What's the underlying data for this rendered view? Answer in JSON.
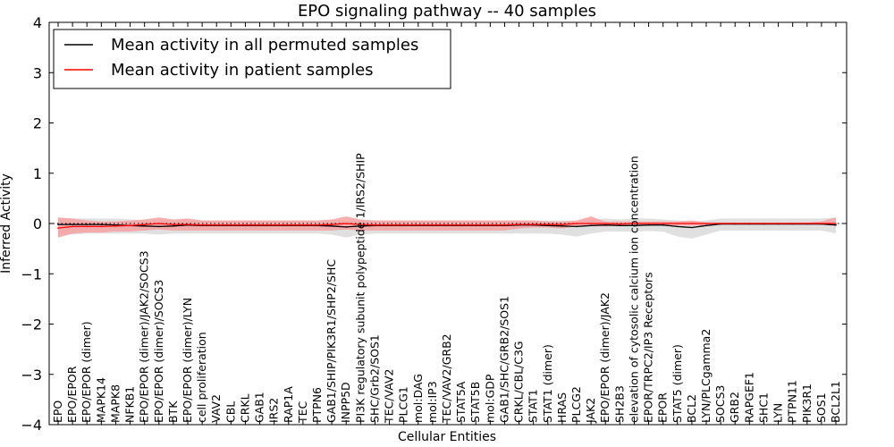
{
  "chart_data": {
    "type": "line",
    "title": "EPO signaling pathway -- 40 samples",
    "xlabel": "Cellular Entities",
    "ylabel": "Inferred Activity",
    "ylim": [
      -4,
      4
    ],
    "yticks": [
      -4,
      -3,
      -2,
      -1,
      0,
      1,
      2,
      3,
      4
    ],
    "legend_position": "top-left",
    "categories": [
      "EPO",
      "EPO/EPOR",
      "EPO/EPOR (dimer)",
      "MAPK14",
      "MAPK8",
      "NFKB1",
      "EPO/EPOR (dimer)/JAK2/SOCS3",
      "EPO/EPOR (dimer)/SOCS3",
      "BTK",
      "EPO/EPOR (dimer)/LYN",
      "cell proliferation",
      "VAV2",
      "CBL",
      "CRKL",
      "GAB1",
      "IRS2",
      "RAP1A",
      "TEC",
      "PTPN6",
      "GAB1/SHIP/PIK3R1/SHP2/SHC",
      "INPP5D",
      "PI3K regulatory subunit polypeptide 1/IRS2/SHIP",
      "SHC/Grb2/SOS1",
      "TEC/VAV2",
      "PLCG1",
      "mol:DAG",
      "mol:IP3",
      "TEC/VAV2/GRB2",
      "STAT5A",
      "STAT5B",
      "mol:GDP",
      "GAB1/SHC/GRB2/SOS1",
      "CRKL/CBL/C3G",
      "STAT1",
      "STAT1 (dimer)",
      "HRAS",
      "PLCG2",
      "JAK2",
      "EPO/EPOR (dimer)/JAK2",
      "SH2B3",
      "elevation of cytosolic calcium ion concentration",
      "EPOR/TRPC2/IP3 Receptors",
      "EPOR",
      "STAT5 (dimer)",
      "BCL2",
      "LYN/PLCgamma2",
      "SOCS3",
      "GRB2",
      "RAPGEF1",
      "SHC1",
      "LYN",
      "PTPN11",
      "PIK3R1",
      "SOS1",
      "BCL2L1"
    ],
    "series": [
      {
        "name": "Mean activity in all permuted samples",
        "color": "#000000",
        "values": [
          -0.02,
          -0.02,
          -0.02,
          -0.02,
          -0.03,
          -0.04,
          -0.05,
          -0.06,
          -0.05,
          -0.03,
          -0.04,
          -0.04,
          -0.04,
          -0.04,
          -0.04,
          -0.04,
          -0.04,
          -0.04,
          -0.04,
          -0.05,
          -0.07,
          -0.05,
          -0.04,
          -0.04,
          -0.04,
          -0.04,
          -0.04,
          -0.04,
          -0.04,
          -0.04,
          -0.04,
          -0.04,
          -0.03,
          -0.03,
          -0.04,
          -0.05,
          -0.06,
          -0.04,
          -0.03,
          -0.04,
          -0.04,
          -0.03,
          -0.03,
          -0.06,
          -0.08,
          -0.04,
          -0.01,
          -0.01,
          -0.01,
          -0.01,
          -0.01,
          -0.01,
          -0.01,
          -0.01,
          -0.03
        ],
        "band_low": [
          -0.22,
          -0.22,
          -0.2,
          -0.2,
          -0.2,
          -0.2,
          -0.2,
          -0.22,
          -0.2,
          -0.2,
          -0.2,
          -0.2,
          -0.2,
          -0.2,
          -0.2,
          -0.2,
          -0.2,
          -0.2,
          -0.2,
          -0.22,
          -0.28,
          -0.22,
          -0.2,
          -0.2,
          -0.2,
          -0.2,
          -0.2,
          -0.2,
          -0.2,
          -0.2,
          -0.2,
          -0.2,
          -0.2,
          -0.2,
          -0.2,
          -0.22,
          -0.26,
          -0.2,
          -0.16,
          -0.16,
          -0.16,
          -0.15,
          -0.16,
          -0.26,
          -0.3,
          -0.22,
          -0.14,
          -0.14,
          -0.14,
          -0.14,
          -0.14,
          -0.14,
          -0.14,
          -0.14,
          -0.2
        ],
        "band_high": [
          0.1,
          0.1,
          0.1,
          0.1,
          0.1,
          0.08,
          0.06,
          0.06,
          0.06,
          0.08,
          0.06,
          0.06,
          0.06,
          0.06,
          0.06,
          0.06,
          0.06,
          0.06,
          0.06,
          0.06,
          0.04,
          0.06,
          0.06,
          0.06,
          0.06,
          0.06,
          0.06,
          0.06,
          0.06,
          0.06,
          0.06,
          0.06,
          0.06,
          0.06,
          0.06,
          0.06,
          0.04,
          0.08,
          0.1,
          0.08,
          0.1,
          0.1,
          0.08,
          0.06,
          0.04,
          0.06,
          0.1,
          0.1,
          0.1,
          0.1,
          0.1,
          0.1,
          0.1,
          0.1,
          0.12
        ],
        "band_color": "#d6d6d6"
      },
      {
        "name": "Mean activity in patient samples",
        "color": "#ff0000",
        "values": [
          -0.09,
          -0.06,
          -0.06,
          -0.06,
          -0.05,
          -0.04,
          -0.02,
          0.0,
          -0.02,
          -0.02,
          -0.03,
          -0.03,
          -0.03,
          -0.03,
          -0.03,
          -0.03,
          -0.03,
          -0.03,
          -0.03,
          -0.02,
          0.0,
          -0.02,
          -0.03,
          -0.03,
          -0.03,
          -0.03,
          -0.03,
          -0.03,
          -0.03,
          -0.03,
          -0.03,
          -0.03,
          -0.02,
          -0.02,
          -0.02,
          -0.02,
          0.0,
          0.0,
          0.0,
          -0.01,
          0.0,
          0.0,
          0.0,
          0.0,
          0.0,
          0.0,
          0.0,
          0.0,
          0.0,
          0.0,
          0.0,
          0.0,
          0.0,
          0.0,
          0.0
        ],
        "band_low": [
          -0.28,
          -0.2,
          -0.18,
          -0.18,
          -0.16,
          -0.16,
          -0.14,
          -0.12,
          -0.14,
          -0.14,
          -0.14,
          -0.14,
          -0.14,
          -0.14,
          -0.14,
          -0.14,
          -0.14,
          -0.14,
          -0.14,
          -0.14,
          -0.12,
          -0.14,
          -0.14,
          -0.14,
          -0.14,
          -0.14,
          -0.14,
          -0.14,
          -0.14,
          -0.14,
          -0.14,
          -0.14,
          -0.1,
          -0.08,
          -0.08,
          -0.1,
          -0.06,
          -0.05,
          -0.06,
          -0.04,
          -0.04,
          -0.04,
          -0.04,
          -0.04,
          -0.04,
          -0.04,
          -0.02,
          -0.02,
          -0.02,
          -0.02,
          -0.02,
          -0.02,
          -0.02,
          -0.02,
          -0.04
        ],
        "band_high": [
          0.12,
          0.1,
          0.06,
          0.04,
          0.04,
          0.06,
          0.08,
          0.12,
          0.08,
          0.1,
          0.06,
          0.06,
          0.06,
          0.06,
          0.06,
          0.06,
          0.06,
          0.06,
          0.06,
          0.08,
          0.14,
          0.08,
          0.06,
          0.06,
          0.06,
          0.06,
          0.06,
          0.06,
          0.06,
          0.06,
          0.06,
          0.06,
          0.06,
          0.06,
          0.04,
          0.04,
          0.06,
          0.14,
          0.04,
          0.04,
          0.04,
          0.04,
          0.04,
          0.04,
          0.06,
          0.02,
          0.02,
          0.02,
          0.02,
          0.02,
          0.02,
          0.02,
          0.02,
          0.04,
          0.12
        ],
        "band_color": "#f5a0a0"
      }
    ]
  }
}
